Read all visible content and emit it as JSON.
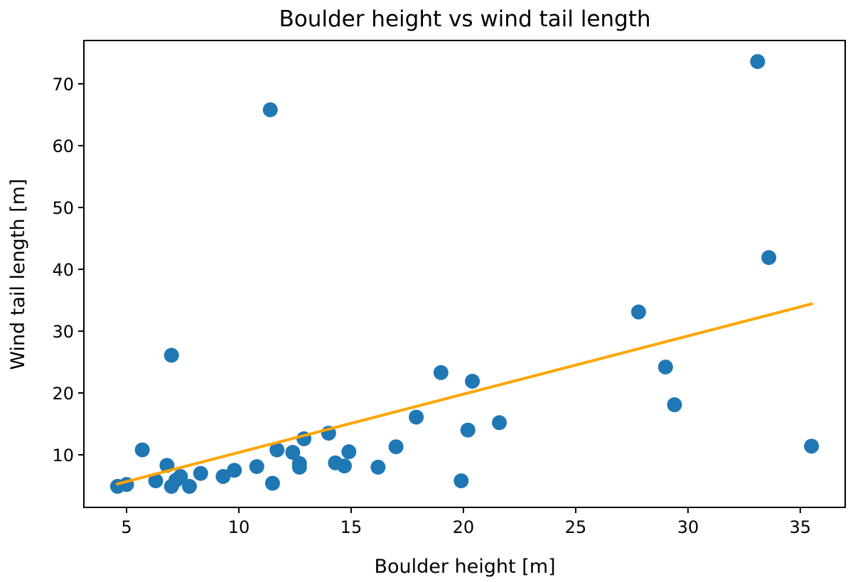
{
  "chart_data": {
    "type": "scatter",
    "title": "Boulder height vs wind tail length",
    "xlabel": "Boulder height [m]",
    "ylabel": "Wind tail length [m]",
    "xlim": [
      3.1,
      37.0
    ],
    "ylim": [
      1.5,
      77.0
    ],
    "x_ticks": [
      5,
      10,
      15,
      20,
      25,
      30,
      35
    ],
    "y_ticks": [
      10,
      20,
      30,
      40,
      50,
      60,
      70
    ],
    "grid": false,
    "colors": {
      "points": "#1f77b4",
      "fit_line": "#ffa500"
    },
    "points": [
      {
        "x": 4.6,
        "y": 4.9
      },
      {
        "x": 5.0,
        "y": 5.2
      },
      {
        "x": 5.7,
        "y": 10.8
      },
      {
        "x": 6.3,
        "y": 5.8
      },
      {
        "x": 6.8,
        "y": 8.3
      },
      {
        "x": 7.0,
        "y": 4.9
      },
      {
        "x": 7.0,
        "y": 26.1
      },
      {
        "x": 7.2,
        "y": 5.9
      },
      {
        "x": 7.4,
        "y": 6.5
      },
      {
        "x": 7.8,
        "y": 4.9
      },
      {
        "x": 8.3,
        "y": 7.0
      },
      {
        "x": 9.3,
        "y": 6.5
      },
      {
        "x": 9.8,
        "y": 7.5
      },
      {
        "x": 10.8,
        "y": 8.1
      },
      {
        "x": 11.4,
        "y": 65.8
      },
      {
        "x": 11.5,
        "y": 5.4
      },
      {
        "x": 11.7,
        "y": 10.8
      },
      {
        "x": 12.4,
        "y": 10.4
      },
      {
        "x": 12.7,
        "y": 8.6
      },
      {
        "x": 12.7,
        "y": 8.0
      },
      {
        "x": 12.9,
        "y": 12.6
      },
      {
        "x": 14.0,
        "y": 13.5
      },
      {
        "x": 14.3,
        "y": 8.7
      },
      {
        "x": 14.7,
        "y": 8.2
      },
      {
        "x": 14.9,
        "y": 10.5
      },
      {
        "x": 16.2,
        "y": 8.0
      },
      {
        "x": 17.0,
        "y": 11.3
      },
      {
        "x": 17.9,
        "y": 16.1
      },
      {
        "x": 19.0,
        "y": 23.3
      },
      {
        "x": 19.9,
        "y": 5.8
      },
      {
        "x": 20.2,
        "y": 14.0
      },
      {
        "x": 20.4,
        "y": 21.9
      },
      {
        "x": 21.6,
        "y": 15.2
      },
      {
        "x": 27.8,
        "y": 33.1
      },
      {
        "x": 29.0,
        "y": 24.2
      },
      {
        "x": 29.4,
        "y": 18.1
      },
      {
        "x": 33.1,
        "y": 73.6
      },
      {
        "x": 33.6,
        "y": 41.9
      },
      {
        "x": 35.5,
        "y": 11.4
      }
    ],
    "fit_line": {
      "x": [
        4.6,
        35.5
      ],
      "y": [
        5.3,
        34.4
      ]
    }
  }
}
